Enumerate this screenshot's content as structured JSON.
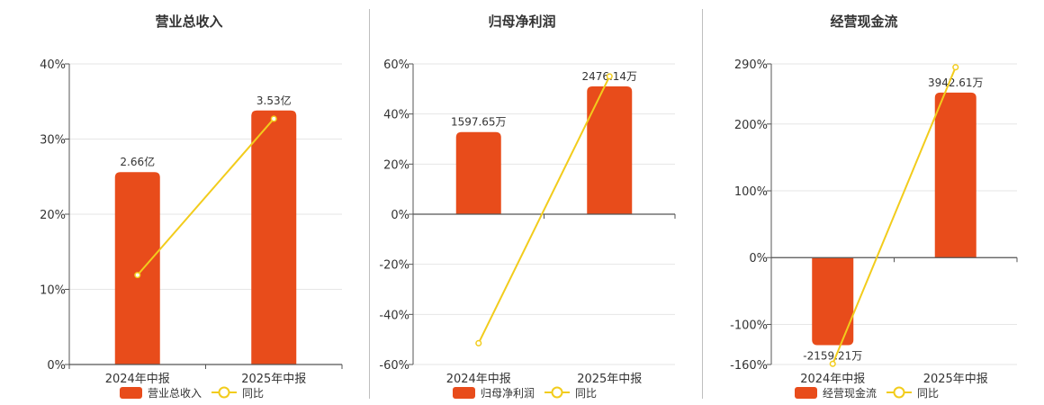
{
  "colors": {
    "bar": "#e84c1b",
    "line": "#f2cc1c",
    "marker_fill": "#ffffff",
    "axis": "#555555",
    "grid": "#e6e6e6",
    "text": "#333333",
    "divider": "#bfbfbf"
  },
  "chart_data": [
    {
      "type": "bar",
      "title": "营业总收入",
      "categories": [
        "2024年中报",
        "2025年中报"
      ],
      "bar_heights_pct": [
        25.6,
        33.8
      ],
      "bar_labels": [
        "2.66亿",
        "3.53亿"
      ],
      "series": [
        {
          "name": "营业总收入",
          "kind": "bar"
        },
        {
          "name": "同比",
          "kind": "line",
          "values": [
            11.9,
            32.7
          ]
        }
      ],
      "yticks": [
        "40%",
        "30%",
        "20%",
        "10%",
        "0%"
      ],
      "ylim": [
        0,
        40
      ],
      "grid": true,
      "legend": "bottom"
    },
    {
      "type": "bar",
      "title": "归母净利润",
      "categories": [
        "2024年中报",
        "2025年中报"
      ],
      "bar_heights_pct": [
        32.8,
        51.0
      ],
      "bar_labels": [
        "1597.65万",
        "2476.14万"
      ],
      "series": [
        {
          "name": "归母净利润",
          "kind": "bar"
        },
        {
          "name": "同比",
          "kind": "line",
          "values": [
            -51.5,
            55.0
          ]
        }
      ],
      "yticks": [
        "60%",
        "40%",
        "20%",
        "0%",
        "-20%",
        "-40%",
        "-60%"
      ],
      "ylim": [
        -60,
        60
      ],
      "grid": true,
      "legend": "bottom"
    },
    {
      "type": "bar",
      "title": "经营现金流",
      "categories": [
        "2024年中报",
        "2025年中报"
      ],
      "bar_heights_pct": [
        -131.0,
        247.0
      ],
      "bar_labels": [
        "-2159.21万",
        "3942.61万"
      ],
      "series": [
        {
          "name": "经营现金流",
          "kind": "bar"
        },
        {
          "name": "同比",
          "kind": "line",
          "values": [
            -159.0,
            285.0
          ]
        }
      ],
      "yticks": [
        "290%",
        "200%",
        "100%",
        "0%",
        "-100%",
        "-160%"
      ],
      "ylim": [
        -160,
        290
      ],
      "grid": true,
      "legend": "bottom"
    }
  ]
}
